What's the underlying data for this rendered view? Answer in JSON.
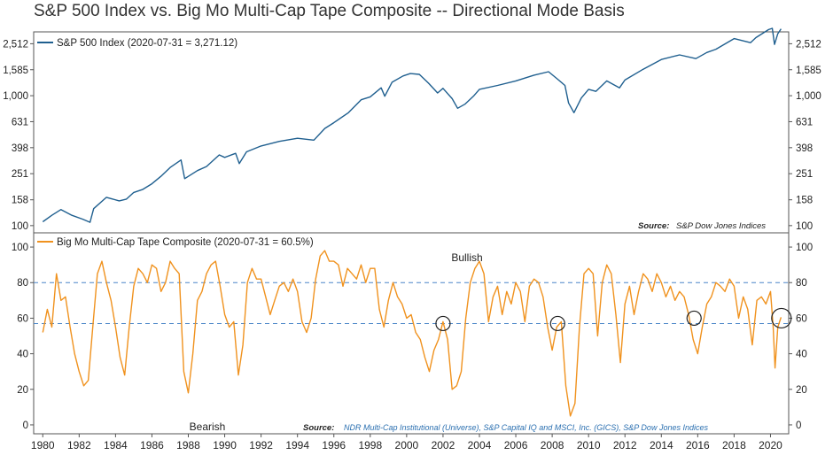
{
  "chart_data": [
    {
      "type": "line",
      "title": "S&P 500 Index vs. Big Mo Multi-Cap Tape Composite -- Directional Mode Basis",
      "panel": "top",
      "scale": "log",
      "series": [
        {
          "name": "S&P 500 Index",
          "legend": "S&P 500 Index (2020-07-31 = 3,271.12)",
          "color": "#1f5f8f",
          "points": [
            [
              1980.0,
              107
            ],
            [
              1980.5,
              120
            ],
            [
              1981.0,
              133
            ],
            [
              1981.6,
              120
            ],
            [
              1982.2,
              112
            ],
            [
              1982.6,
              106
            ],
            [
              1982.8,
              135
            ],
            [
              1983.5,
              165
            ],
            [
              1984.2,
              155
            ],
            [
              1984.6,
              160
            ],
            [
              1985.0,
              180
            ],
            [
              1985.5,
              190
            ],
            [
              1986.0,
              210
            ],
            [
              1986.5,
              240
            ],
            [
              1987.0,
              280
            ],
            [
              1987.6,
              320
            ],
            [
              1987.8,
              230
            ],
            [
              1988.5,
              265
            ],
            [
              1989.0,
              285
            ],
            [
              1989.7,
              350
            ],
            [
              1990.0,
              335
            ],
            [
              1990.6,
              360
            ],
            [
              1990.8,
              300
            ],
            [
              1991.2,
              370
            ],
            [
              1992.0,
              410
            ],
            [
              1993.0,
              445
            ],
            [
              1994.0,
              470
            ],
            [
              1994.9,
              455
            ],
            [
              1995.5,
              560
            ],
            [
              1996.0,
              620
            ],
            [
              1996.8,
              740
            ],
            [
              1997.5,
              930
            ],
            [
              1998.0,
              980
            ],
            [
              1998.6,
              1150
            ],
            [
              1998.8,
              990
            ],
            [
              1999.2,
              1270
            ],
            [
              1999.8,
              1420
            ],
            [
              2000.2,
              1480
            ],
            [
              2000.7,
              1460
            ],
            [
              2001.2,
              1250
            ],
            [
              2001.7,
              1050
            ],
            [
              2002.0,
              1140
            ],
            [
              2002.5,
              950
            ],
            [
              2002.8,
              800
            ],
            [
              2003.2,
              860
            ],
            [
              2003.7,
              1000
            ],
            [
              2004.0,
              1120
            ],
            [
              2005.0,
              1200
            ],
            [
              2006.0,
              1300
            ],
            [
              2007.0,
              1440
            ],
            [
              2007.8,
              1530
            ],
            [
              2008.3,
              1340
            ],
            [
              2008.7,
              1200
            ],
            [
              2008.9,
              880
            ],
            [
              2009.2,
              740
            ],
            [
              2009.6,
              960
            ],
            [
              2010.0,
              1120
            ],
            [
              2010.4,
              1080
            ],
            [
              2011.0,
              1300
            ],
            [
              2011.7,
              1150
            ],
            [
              2012.0,
              1320
            ],
            [
              2013.0,
              1600
            ],
            [
              2014.0,
              1900
            ],
            [
              2015.0,
              2060
            ],
            [
              2015.9,
              1930
            ],
            [
              2016.5,
              2150
            ],
            [
              2017.0,
              2280
            ],
            [
              2018.0,
              2750
            ],
            [
              2018.9,
              2560
            ],
            [
              2019.2,
              2800
            ],
            [
              2019.9,
              3230
            ],
            [
              2020.1,
              3300
            ],
            [
              2020.22,
              2480
            ],
            [
              2020.4,
              3000
            ],
            [
              2020.58,
              3271.12
            ]
          ]
        }
      ],
      "y_ticks": [
        "100",
        "158",
        "251",
        "398",
        "631",
        "1,000",
        "1,585",
        "2,512"
      ],
      "y_tick_values": [
        100,
        158,
        251,
        398,
        631,
        1000,
        1585,
        2512
      ],
      "ylim": [
        88,
        3100
      ],
      "source": "S&P Dow Jones Indices",
      "source_label": "Source:"
    },
    {
      "type": "line",
      "panel": "bottom",
      "scale": "linear",
      "series": [
        {
          "name": "Big Mo Multi-Cap Tape Composite",
          "legend": "Big Mo Multi-Cap Tape Composite (2020-07-31 = 60.5%)",
          "color": "#f0921e",
          "points": [
            [
              1980.0,
              52
            ],
            [
              1980.25,
              65
            ],
            [
              1980.5,
              55
            ],
            [
              1980.75,
              85
            ],
            [
              1981.0,
              70
            ],
            [
              1981.25,
              72
            ],
            [
              1981.5,
              55
            ],
            [
              1981.75,
              40
            ],
            [
              1982.0,
              30
            ],
            [
              1982.25,
              22
            ],
            [
              1982.5,
              25
            ],
            [
              1982.75,
              55
            ],
            [
              1983.0,
              85
            ],
            [
              1983.25,
              92
            ],
            [
              1983.5,
              80
            ],
            [
              1983.75,
              70
            ],
            [
              1984.0,
              55
            ],
            [
              1984.25,
              38
            ],
            [
              1984.5,
              28
            ],
            [
              1984.75,
              55
            ],
            [
              1985.0,
              78
            ],
            [
              1985.25,
              88
            ],
            [
              1985.5,
              85
            ],
            [
              1985.75,
              80
            ],
            [
              1986.0,
              90
            ],
            [
              1986.25,
              88
            ],
            [
              1986.5,
              75
            ],
            [
              1986.75,
              80
            ],
            [
              1987.0,
              92
            ],
            [
              1987.25,
              88
            ],
            [
              1987.5,
              85
            ],
            [
              1987.75,
              30
            ],
            [
              1988.0,
              18
            ],
            [
              1988.25,
              40
            ],
            [
              1988.5,
              70
            ],
            [
              1988.75,
              75
            ],
            [
              1989.0,
              85
            ],
            [
              1989.25,
              90
            ],
            [
              1989.5,
              92
            ],
            [
              1989.75,
              78
            ],
            [
              1990.0,
              62
            ],
            [
              1990.25,
              55
            ],
            [
              1990.5,
              58
            ],
            [
              1990.75,
              28
            ],
            [
              1991.0,
              45
            ],
            [
              1991.25,
              80
            ],
            [
              1991.5,
              88
            ],
            [
              1991.75,
              82
            ],
            [
              1992.0,
              82
            ],
            [
              1992.25,
              72
            ],
            [
              1992.5,
              62
            ],
            [
              1992.75,
              70
            ],
            [
              1993.0,
              78
            ],
            [
              1993.25,
              80
            ],
            [
              1993.5,
              75
            ],
            [
              1993.75,
              82
            ],
            [
              1994.0,
              75
            ],
            [
              1994.25,
              58
            ],
            [
              1994.5,
              52
            ],
            [
              1994.75,
              60
            ],
            [
              1995.0,
              82
            ],
            [
              1995.25,
              95
            ],
            [
              1995.5,
              98
            ],
            [
              1995.75,
              92
            ],
            [
              1996.0,
              92
            ],
            [
              1996.25,
              90
            ],
            [
              1996.5,
              78
            ],
            [
              1996.75,
              88
            ],
            [
              1997.0,
              85
            ],
            [
              1997.25,
              82
            ],
            [
              1997.5,
              90
            ],
            [
              1997.75,
              80
            ],
            [
              1998.0,
              88
            ],
            [
              1998.25,
              88
            ],
            [
              1998.5,
              65
            ],
            [
              1998.75,
              55
            ],
            [
              1999.0,
              70
            ],
            [
              1999.25,
              80
            ],
            [
              1999.5,
              72
            ],
            [
              1999.75,
              68
            ],
            [
              2000.0,
              60
            ],
            [
              2000.25,
              62
            ],
            [
              2000.5,
              52
            ],
            [
              2000.75,
              48
            ],
            [
              2001.0,
              38
            ],
            [
              2001.25,
              30
            ],
            [
              2001.5,
              42
            ],
            [
              2001.75,
              48
            ],
            [
              2002.0,
              58
            ],
            [
              2002.25,
              48
            ],
            [
              2002.5,
              20
            ],
            [
              2002.75,
              22
            ],
            [
              2003.0,
              30
            ],
            [
              2003.25,
              60
            ],
            [
              2003.5,
              80
            ],
            [
              2003.75,
              88
            ],
            [
              2004.0,
              92
            ],
            [
              2004.25,
              85
            ],
            [
              2004.5,
              58
            ],
            [
              2004.75,
              72
            ],
            [
              2005.0,
              78
            ],
            [
              2005.25,
              62
            ],
            [
              2005.5,
              75
            ],
            [
              2005.75,
              68
            ],
            [
              2006.0,
              80
            ],
            [
              2006.25,
              75
            ],
            [
              2006.5,
              58
            ],
            [
              2006.75,
              78
            ],
            [
              2007.0,
              82
            ],
            [
              2007.25,
              80
            ],
            [
              2007.5,
              72
            ],
            [
              2007.75,
              55
            ],
            [
              2008.0,
              42
            ],
            [
              2008.25,
              55
            ],
            [
              2008.5,
              58
            ],
            [
              2008.75,
              22
            ],
            [
              2009.0,
              5
            ],
            [
              2009.25,
              12
            ],
            [
              2009.5,
              55
            ],
            [
              2009.75,
              85
            ],
            [
              2010.0,
              88
            ],
            [
              2010.25,
              85
            ],
            [
              2010.5,
              50
            ],
            [
              2010.75,
              80
            ],
            [
              2011.0,
              90
            ],
            [
              2011.25,
              85
            ],
            [
              2011.5,
              62
            ],
            [
              2011.75,
              35
            ],
            [
              2012.0,
              68
            ],
            [
              2012.25,
              78
            ],
            [
              2012.5,
              62
            ],
            [
              2012.75,
              75
            ],
            [
              2013.0,
              85
            ],
            [
              2013.25,
              82
            ],
            [
              2013.5,
              75
            ],
            [
              2013.75,
              85
            ],
            [
              2014.0,
              80
            ],
            [
              2014.25,
              72
            ],
            [
              2014.5,
              78
            ],
            [
              2014.75,
              70
            ],
            [
              2015.0,
              75
            ],
            [
              2015.25,
              72
            ],
            [
              2015.5,
              62
            ],
            [
              2015.75,
              48
            ],
            [
              2016.0,
              40
            ],
            [
              2016.25,
              55
            ],
            [
              2016.5,
              68
            ],
            [
              2016.75,
              72
            ],
            [
              2017.0,
              80
            ],
            [
              2017.25,
              78
            ],
            [
              2017.5,
              75
            ],
            [
              2017.75,
              82
            ],
            [
              2018.0,
              78
            ],
            [
              2018.25,
              60
            ],
            [
              2018.5,
              72
            ],
            [
              2018.75,
              65
            ],
            [
              2019.0,
              45
            ],
            [
              2019.25,
              70
            ],
            [
              2019.5,
              72
            ],
            [
              2019.75,
              68
            ],
            [
              2020.0,
              75
            ],
            [
              2020.15,
              55
            ],
            [
              2020.25,
              32
            ],
            [
              2020.4,
              55
            ],
            [
              2020.58,
              60.5
            ]
          ]
        }
      ],
      "y_ticks": [
        "0",
        "20",
        "40",
        "60",
        "80",
        "100"
      ],
      "y_tick_values": [
        0,
        20,
        40,
        60,
        80,
        100
      ],
      "ylim": [
        -5,
        108
      ],
      "reference_lines": [
        80,
        57
      ],
      "highlight_circles": [
        {
          "x": 2002.0,
          "y": 57
        },
        {
          "x": 2008.3,
          "y": 57
        },
        {
          "x": 2015.8,
          "y": 60
        },
        {
          "x": 2020.6,
          "y": 60
        }
      ],
      "zone_labels": {
        "top": "Bullish",
        "bottom": "Bearish"
      },
      "source": "NDR Multi-Cap Institutional (Universe), S&P Capital IQ and MSCI, Inc. (GICS), S&P Dow Jones Indices",
      "source_label": "Source:"
    }
  ],
  "x_axis": {
    "range": [
      1979.5,
      2021.0
    ],
    "ticks": [
      "1980",
      "1982",
      "1984",
      "1986",
      "1988",
      "1990",
      "1992",
      "1994",
      "1996",
      "1998",
      "2000",
      "2002",
      "2004",
      "2006",
      "2008",
      "2010",
      "2012",
      "2014",
      "2016",
      "2018",
      "2020"
    ],
    "tick_values": [
      1980,
      1982,
      1984,
      1986,
      1988,
      1990,
      1992,
      1994,
      1996,
      1998,
      2000,
      2002,
      2004,
      2006,
      2008,
      2010,
      2012,
      2014,
      2016,
      2018,
      2020
    ]
  }
}
